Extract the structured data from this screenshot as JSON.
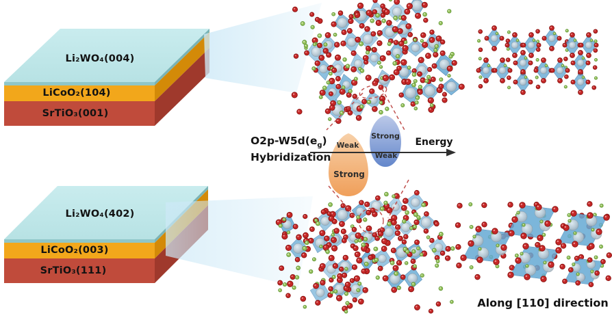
{
  "stacks": {
    "top": {
      "layers": [
        {
          "label": "Li₂WO₄(004)"
        },
        {
          "label": "LiCoO₂(104)"
        },
        {
          "label": "SrTiO₃(001)"
        }
      ]
    },
    "bottom": {
      "layers": [
        {
          "label": "Li₂WO₄(402)"
        },
        {
          "label": "LiCoO₂(003)"
        },
        {
          "label": "SrTiO₃(111)"
        }
      ]
    }
  },
  "annotation": {
    "hybridization": {
      "pre": "O2p-W5d(e",
      "sub": "g",
      "post": ")",
      "line2": "Hybridization"
    },
    "energy_label": "Energy",
    "orange_lobe": {
      "top_label": "Weak",
      "bottom_label": "Strong"
    },
    "blue_lobe": {
      "top_label": "Strong",
      "bottom_label": "Weak"
    }
  },
  "caption": {
    "text": "Along [110] direction"
  },
  "colors": {
    "film_top": "#b7e2e4",
    "film_top_light": "#c9ecee",
    "film_edge": "#8fc6c8",
    "film_edge_side": "#7ab4b6",
    "lco_front": "#f2a71b",
    "lco_side": "#d38a08",
    "sto_front": "#c04b3b",
    "sto_side": "#9f392c",
    "beam": "#cde9f7",
    "polyhedron": "#66aad4",
    "polyhedron_edge": "#3e7fb0",
    "oxygen": "#c62828",
    "oxygen_ring": "#8e1513",
    "oxygen_glint": "#ef9a9a",
    "lithium": "#97c15c",
    "lithium_ring": "#639a39",
    "lithium_glint": "#e8f5d0",
    "tungsten_hi": "#eef3f5",
    "tungsten_mid": "#c3ced6",
    "tungsten_lo": "#93a5b1",
    "dash": "#c0504d",
    "orange_lobe_light": "#f7cfa6",
    "orange_lobe_dark": "#ef9c55",
    "blue_lobe_light": "#b9c7e8",
    "blue_lobe_dark": "#5f83c9",
    "arrow": "#2f2f2f"
  }
}
